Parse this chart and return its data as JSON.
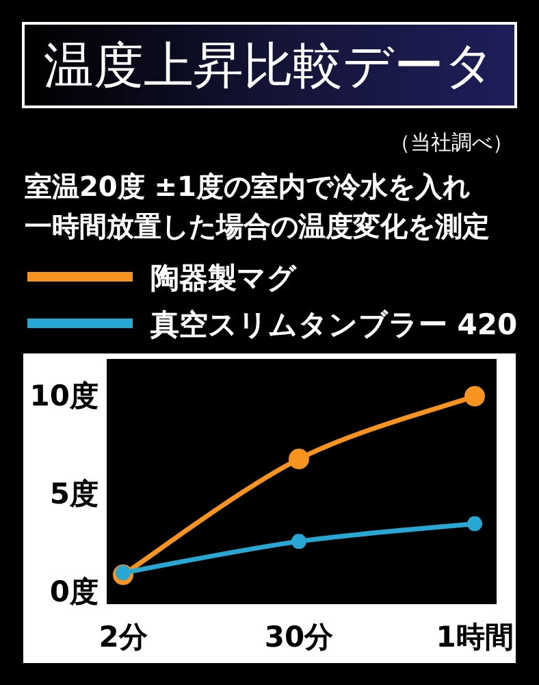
{
  "chart_data": {
    "type": "line",
    "title": "温度上昇比較データ",
    "subtitle": "室温20度 ±1度の室内で冷水を入れ一時間放置した場合の温度変化を測定",
    "annotations": [
      "（当社調べ）"
    ],
    "categories": [
      "2分",
      "30分",
      "1時間"
    ],
    "series": [
      {
        "name": "陶器製マグ",
        "color": "#f7931e",
        "values": [
          0.8,
          6.7,
          9.9
        ]
      },
      {
        "name": "真空スリムタンブラー 420",
        "color": "#27a8d4",
        "values": [
          0.9,
          2.5,
          3.4
        ]
      }
    ],
    "ylim": [
      -0.7,
      11.8
    ],
    "yticks": [
      {
        "value": 0,
        "label": "0度"
      },
      {
        "value": 5,
        "label": "5度"
      },
      {
        "value": 10,
        "label": "10度"
      }
    ],
    "legend": "top left",
    "marker": "circle",
    "grid": false
  }
}
